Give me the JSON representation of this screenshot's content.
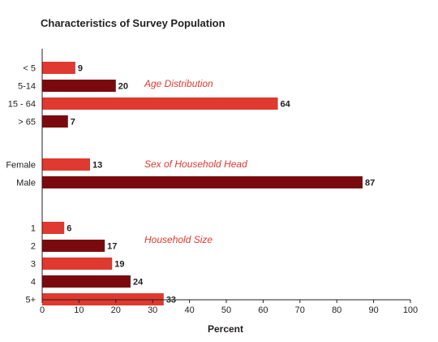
{
  "chart_data": {
    "type": "bar",
    "orientation": "horizontal",
    "title": "Characteristics of Survey Population",
    "xlabel": "Percent",
    "xlim": [
      0,
      100
    ],
    "xticks": [
      0,
      10,
      20,
      30,
      40,
      50,
      60,
      70,
      80,
      90,
      100
    ],
    "grid": false,
    "colors": {
      "light": "#e0392f",
      "dark": "#7b0a0f",
      "annotation": "#e0392f"
    },
    "groups": [
      {
        "name": "Age Distribution",
        "categories": [
          "< 5",
          "5-14",
          "15 - 64",
          "> 65"
        ],
        "values": [
          9,
          20,
          64,
          7
        ],
        "shades": [
          "light",
          "dark",
          "light",
          "dark"
        ]
      },
      {
        "name": "Sex of Household Head",
        "categories": [
          "Female",
          "Male"
        ],
        "values": [
          13,
          87
        ],
        "shades": [
          "light",
          "dark"
        ]
      },
      {
        "name": "Household Size",
        "categories": [
          "1",
          "2",
          "3",
          "4",
          "5+"
        ],
        "values": [
          6,
          17,
          19,
          24,
          33
        ],
        "shades": [
          "light",
          "dark",
          "light",
          "dark",
          "light"
        ]
      }
    ]
  }
}
